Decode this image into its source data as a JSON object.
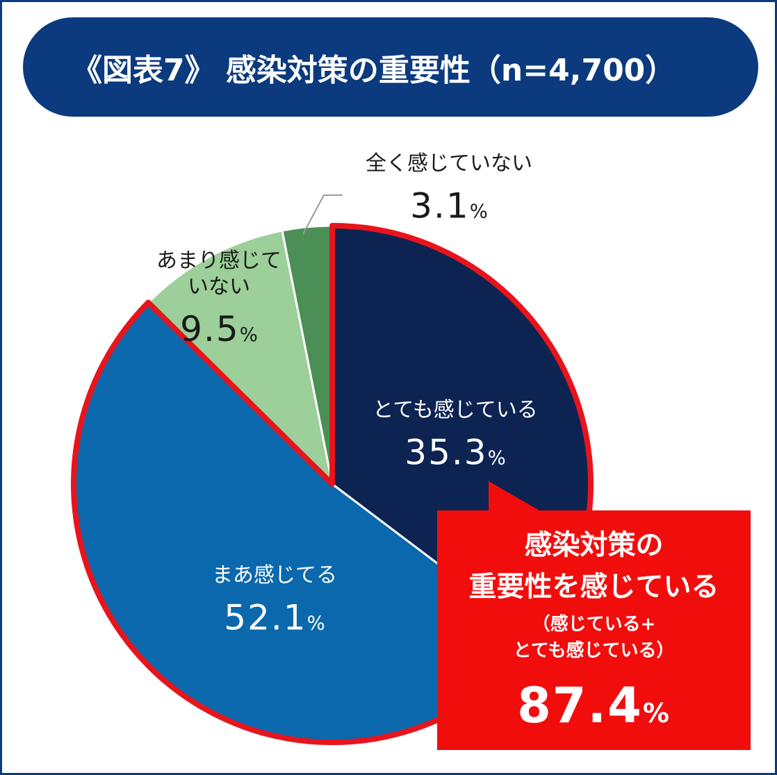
{
  "title": "《図表7》 感染対策の重要性（n=4,700）",
  "chart_data": {
    "type": "pie",
    "title": "《図表7》 感染対策の重要性（n=4,700）",
    "slices": [
      {
        "label": "とても感じている",
        "label_lines": [
          "とても感じている"
        ],
        "value": 35.3,
        "value_text": "35.3",
        "unit": "%",
        "color": "#0d2453",
        "text_color": "#ffffff"
      },
      {
        "label": "まあ感じてる",
        "label_lines": [
          "まあ感じてる"
        ],
        "value": 52.1,
        "value_text": "52.1",
        "unit": "%",
        "color": "#0c68ad",
        "text_color": "#ffffff"
      },
      {
        "label": "あまり感じていない",
        "label_lines": [
          "あまり感じて",
          "いない"
        ],
        "value": 9.5,
        "value_text": "9.5",
        "unit": "%",
        "color": "#9ccf99",
        "text_color": "#1a1a1a"
      },
      {
        "label": "全く感じていない",
        "label_lines": [
          "全く感じていない"
        ],
        "value": 3.1,
        "value_text": "3.1",
        "unit": "%",
        "color": "#4c8f56",
        "text_color": "#1a1a1a"
      }
    ],
    "highlight": {
      "slices": [
        "とても感じている",
        "まあ感じてる"
      ],
      "color": "#e8141c"
    }
  },
  "callout": {
    "line1": "感染対策の",
    "line2": "重要性を感じている",
    "line3": "（感じている+",
    "line4": "とても感じている）",
    "value": "87.4",
    "unit": "%",
    "color": "#f20d0d"
  }
}
